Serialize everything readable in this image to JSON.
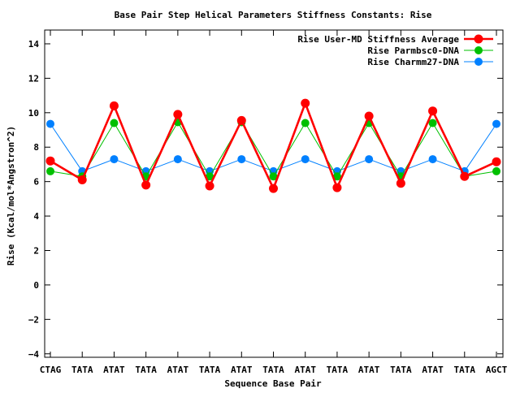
{
  "chart_data": {
    "type": "line",
    "title": "Base Pair Step Helical Parameters Stiffness Constants: Rise",
    "xlabel": "Sequence Base Pair",
    "ylabel": "Rise (Kcal/mol*Angstron^2)",
    "categories": [
      "CTAG",
      "TATA",
      "ATAT",
      "TATA",
      "ATAT",
      "TATA",
      "ATAT",
      "TATA",
      "ATAT",
      "TATA",
      "ATAT",
      "TATA",
      "ATAT",
      "TATA",
      "AGCT"
    ],
    "ylim": [
      -4.2,
      14.8
    ],
    "yticks": [
      -4,
      -2,
      0,
      2,
      4,
      6,
      8,
      10,
      12,
      14
    ],
    "grid": false,
    "legend_position": "top-right",
    "series": [
      {
        "name": "Rise User-MD Stiffness Average",
        "color": "#ff0000",
        "values": [
          7.2,
          6.1,
          10.4,
          5.8,
          9.9,
          5.75,
          9.55,
          5.6,
          10.55,
          5.65,
          9.8,
          5.9,
          10.1,
          6.3,
          7.15
        ]
      },
      {
        "name": "Rise Parmbsc0-DNA",
        "color": "#00c000",
        "values": [
          6.6,
          6.3,
          9.4,
          6.3,
          9.45,
          6.3,
          9.45,
          6.3,
          9.4,
          6.3,
          9.4,
          6.3,
          9.4,
          6.3,
          6.6
        ]
      },
      {
        "name": "Rise Charmm27-DNA",
        "color": "#0080ff",
        "values": [
          9.35,
          6.6,
          7.3,
          6.6,
          7.3,
          6.6,
          7.3,
          6.6,
          7.3,
          6.6,
          7.3,
          6.6,
          7.3,
          6.6,
          9.35
        ]
      }
    ]
  }
}
